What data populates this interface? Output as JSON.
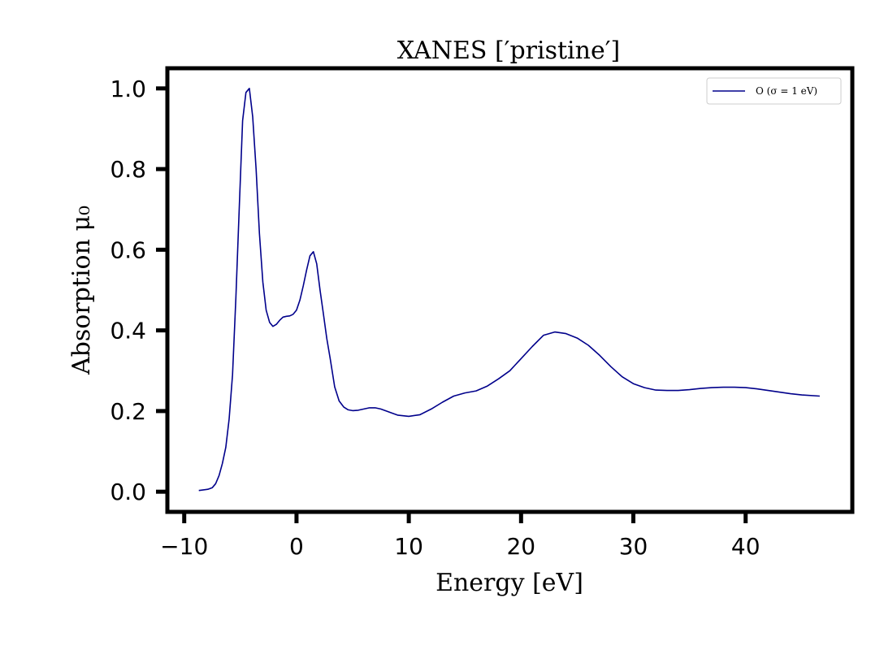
{
  "chart_data": {
    "type": "line",
    "title": "XANES [′pristine′]",
    "xlabel": "Energy [eV]",
    "ylabel": "Absorption μ₀",
    "xlim": [
      -11.5,
      49.5
    ],
    "ylim": [
      -0.05,
      1.05
    ],
    "xticks": [
      -10,
      0,
      10,
      20,
      30,
      40
    ],
    "xtick_labels": [
      "−10",
      "0",
      "10",
      "20",
      "30",
      "40"
    ],
    "yticks": [
      0.0,
      0.2,
      0.4,
      0.6,
      0.8,
      1.0
    ],
    "ytick_labels": [
      "0.0",
      "0.2",
      "0.4",
      "0.6",
      "0.8",
      "1.0"
    ],
    "grid": false,
    "legend_position": "top-right",
    "colors": {
      "series": "#00008b",
      "axes": "#000000"
    },
    "series": [
      {
        "name": "O (σ = 1 eV)",
        "x": [
          -8.7,
          -7.9,
          -7.5,
          -7.2,
          -6.9,
          -6.6,
          -6.3,
          -6.0,
          -5.7,
          -5.4,
          -5.1,
          -4.8,
          -4.5,
          -4.2,
          -3.9,
          -3.6,
          -3.3,
          -3.0,
          -2.7,
          -2.4,
          -2.1,
          -1.8,
          -1.5,
          -1.2,
          -0.9,
          -0.6,
          -0.3,
          0.0,
          0.3,
          0.6,
          0.9,
          1.2,
          1.5,
          1.8,
          2.1,
          2.4,
          2.7,
          3.0,
          3.4,
          3.8,
          4.2,
          4.6,
          5.0,
          5.5,
          6.0,
          6.5,
          7.0,
          7.5,
          8.0,
          9.0,
          10.0,
          11.0,
          12.0,
          13.0,
          14.0,
          15.0,
          16.0,
          17.0,
          18.0,
          19.0,
          20.0,
          21.0,
          22.0,
          23.0,
          24.0,
          25.0,
          26.0,
          27.0,
          28.0,
          29.0,
          30.0,
          31.0,
          32.0,
          33.0,
          34.0,
          35.0,
          36.0,
          37.0,
          38.0,
          39.0,
          40.0,
          41.0,
          42.0,
          43.0,
          44.0,
          45.0,
          46.6
        ],
        "y": [
          0.003,
          0.006,
          0.01,
          0.02,
          0.04,
          0.07,
          0.11,
          0.18,
          0.29,
          0.48,
          0.7,
          0.92,
          0.99,
          1.0,
          0.93,
          0.8,
          0.64,
          0.52,
          0.45,
          0.42,
          0.41,
          0.415,
          0.425,
          0.433,
          0.435,
          0.436,
          0.44,
          0.45,
          0.475,
          0.51,
          0.55,
          0.585,
          0.595,
          0.565,
          0.5,
          0.44,
          0.38,
          0.33,
          0.26,
          0.225,
          0.21,
          0.203,
          0.201,
          0.202,
          0.205,
          0.208,
          0.208,
          0.205,
          0.2,
          0.19,
          0.187,
          0.191,
          0.205,
          0.222,
          0.237,
          0.245,
          0.25,
          0.262,
          0.28,
          0.3,
          0.33,
          0.36,
          0.388,
          0.396,
          0.392,
          0.381,
          0.363,
          0.338,
          0.31,
          0.285,
          0.268,
          0.258,
          0.252,
          0.251,
          0.251,
          0.253,
          0.256,
          0.258,
          0.259,
          0.259,
          0.258,
          0.255,
          0.251,
          0.247,
          0.243,
          0.24,
          0.237
        ]
      }
    ]
  }
}
